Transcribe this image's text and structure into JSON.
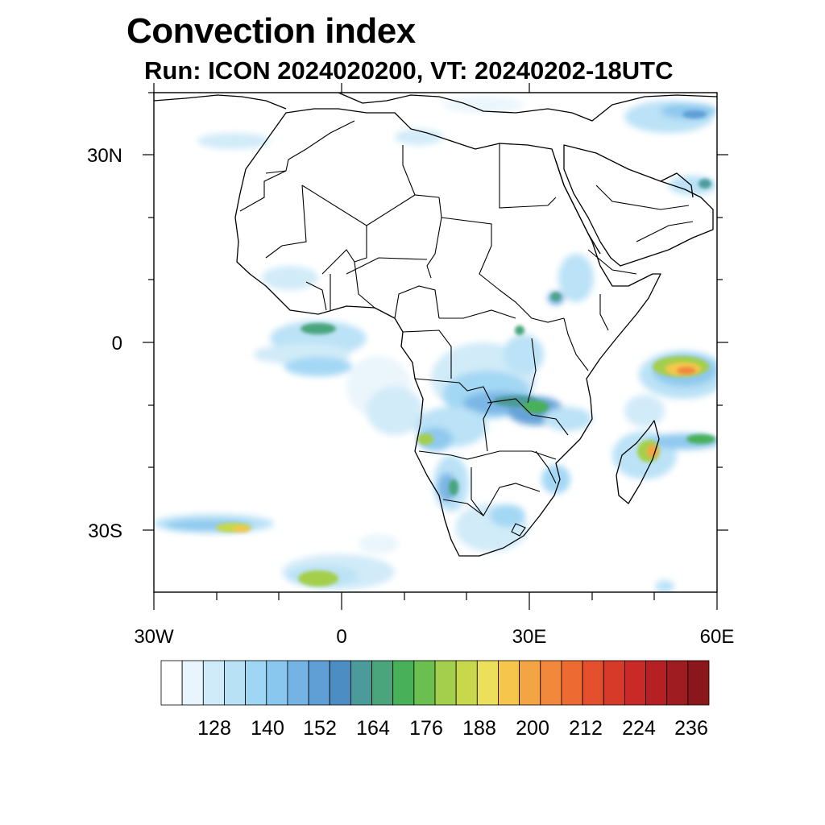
{
  "title": "Convection index",
  "subtitle": "Run: ICON 2024020200,  VT: 20240202-18UTC",
  "lat_labels": [
    "30N",
    "0",
    "30S"
  ],
  "lon_labels": [
    "30W",
    "0",
    "30E",
    "60E"
  ],
  "map_extent": {
    "lon": [
      -30,
      60
    ],
    "lat": [
      -40,
      40
    ]
  },
  "colorbar": {
    "labels": [
      "128",
      "140",
      "152",
      "164",
      "176",
      "188",
      "200",
      "212",
      "224",
      "236"
    ],
    "colors": [
      "#ffffff",
      "#e9f5fc",
      "#cfeaf8",
      "#b8e1f6",
      "#9fd6f4",
      "#8ac7ee",
      "#74b3e4",
      "#5f9fd6",
      "#4c8ec4",
      "#4b9b9a",
      "#4aa57d",
      "#49b05a",
      "#6bbf4f",
      "#a4cf4c",
      "#c8d84c",
      "#ece05a",
      "#f6c64c",
      "#f4a543",
      "#f2883c",
      "#ee6a33",
      "#e4502d",
      "#d83a2a",
      "#c92a28",
      "#b42024",
      "#9f1c21",
      "#8a171c"
    ]
  }
}
